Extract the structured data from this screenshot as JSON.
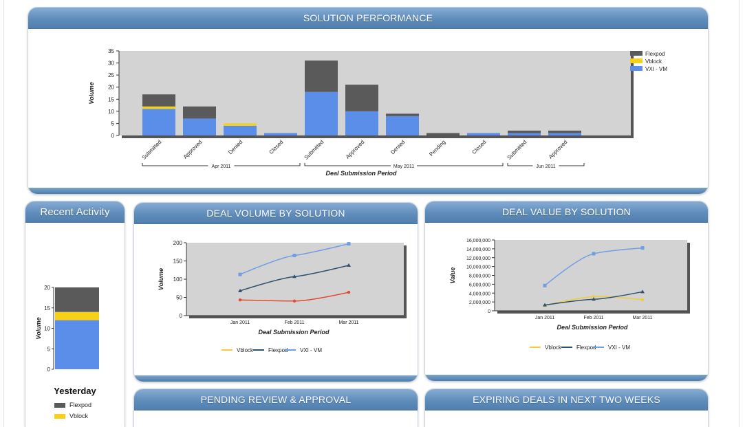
{
  "panels": {
    "solution_performance": "SOLUTION PERFORMANCE",
    "recent_activity": "Recent Activity",
    "deal_volume": "DEAL VOLUME BY SOLUTION",
    "deal_value": "DEAL VALUE BY SOLUTION",
    "pending_review": "PENDING REVIEW & APPROVAL",
    "expiring_deals": "EXPIRING DEALS IN NEXT TWO WEEKS"
  },
  "colors": {
    "flexpod": "#5a5a5a",
    "vblock": "#f7d117",
    "vxi": "#5b8ee8",
    "flexpod_line": "#2f4f6f",
    "vxi_line": "#6f9ee6",
    "vblock_volume_line": "#e04b35",
    "vblock_value_line": "#f0cd3a",
    "plot_bg": "#d3d3d3"
  },
  "chart_data": [
    {
      "id": "solution_performance",
      "type": "bar",
      "stacked": true,
      "ylabel": "Volume",
      "xlabel": "Deal Submission Period",
      "ylim": [
        0,
        35
      ],
      "yticks": [
        0,
        5,
        10,
        15,
        20,
        25,
        30,
        35
      ],
      "categories": [
        "Submitted",
        "Approved",
        "Denied",
        "Closed",
        "Submitted",
        "Approved",
        "Denied",
        "Pending",
        "Closed",
        "Submitted",
        "Approved"
      ],
      "groups": [
        {
          "label": "Apr 2011",
          "from": 0,
          "to": 3
        },
        {
          "label": "May 2011",
          "from": 4,
          "to": 8
        },
        {
          "label": "Jun 2011",
          "from": 9,
          "to": 10
        }
      ],
      "series": [
        {
          "name": "VXI - VM",
          "values": [
            11,
            7,
            4,
            1,
            18,
            10,
            8,
            0,
            1,
            1,
            1
          ]
        },
        {
          "name": "Vblock",
          "values": [
            1,
            0,
            1,
            0,
            0,
            0,
            0,
            0,
            0,
            0,
            0
          ]
        },
        {
          "name": "Flexpod",
          "values": [
            5,
            5,
            0,
            0,
            13,
            11,
            1,
            1,
            0,
            1,
            1
          ]
        }
      ],
      "legend": [
        "Flexpod",
        "Vblock",
        "VXI - VM"
      ],
      "legend_position": "right"
    },
    {
      "id": "recent_activity",
      "type": "bar",
      "stacked": true,
      "ylabel": "Volume",
      "ylim": [
        0,
        20
      ],
      "yticks": [
        0,
        5,
        10,
        15,
        20
      ],
      "categories": [
        "Yesterday"
      ],
      "series": [
        {
          "name": "VXI - VM",
          "values": [
            12
          ]
        },
        {
          "name": "Vblock",
          "values": [
            2
          ]
        },
        {
          "name": "Flexpod",
          "values": [
            6
          ]
        }
      ],
      "legend": [
        "Flexpod",
        "Vblock"
      ],
      "legend_position": "bottom"
    },
    {
      "id": "deal_volume",
      "type": "line",
      "ylabel": "Volume",
      "xlabel": "Deal Submission Period",
      "ylim": [
        0,
        200
      ],
      "yticks": [
        0,
        50,
        100,
        150,
        200
      ],
      "categories": [
        "Jan 2011",
        "Feb 2011",
        "Mar 2011"
      ],
      "series": [
        {
          "name": "Vblock",
          "values": [
            43,
            40,
            64
          ]
        },
        {
          "name": "Flexpod",
          "values": [
            68,
            107,
            138
          ]
        },
        {
          "name": "VXI - VM",
          "values": [
            113,
            165,
            197
          ]
        }
      ],
      "legend_position": "bottom"
    },
    {
      "id": "deal_value",
      "type": "line",
      "ylabel": "Value",
      "xlabel": "Deal Submission Period",
      "ylim": [
        0,
        16000000
      ],
      "yticks": [
        "0",
        "2,000,000",
        "4,000,000",
        "6,000,000",
        "8,000,000",
        "10,000,000",
        "12,000,000",
        "14,000,000",
        "16,000,000"
      ],
      "categories": [
        "Jan 2011",
        "Feb 2011",
        "Mar 2011"
      ],
      "series": [
        {
          "name": "Vblock",
          "values": [
            1200000,
            3200000,
            2500000
          ]
        },
        {
          "name": "Flexpod",
          "values": [
            1300000,
            2600000,
            4300000
          ]
        },
        {
          "name": "VXI - VM",
          "values": [
            5700000,
            12900000,
            14200000
          ]
        }
      ],
      "legend_position": "bottom"
    }
  ]
}
